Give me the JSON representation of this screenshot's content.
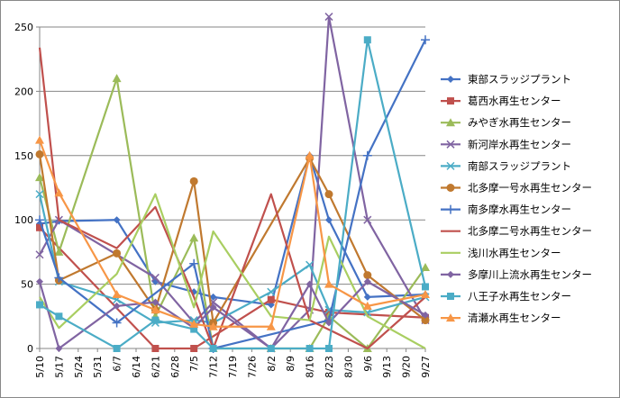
{
  "chart_data": {
    "type": "line",
    "x": [
      "5/10",
      "5/17",
      "5/24",
      "5/31",
      "6/7",
      "6/14",
      "6/21",
      "6/28",
      "7/5",
      "7/12",
      "7/19",
      "7/26",
      "8/2",
      "8/9",
      "8/16",
      "8/23",
      "8/30",
      "9/6",
      "9/13",
      "9/20",
      "9/27"
    ],
    "ylim": [
      0,
      250
    ],
    "yticks": [
      0,
      50,
      100,
      150,
      200,
      250
    ],
    "legend_position": "right",
    "grid": "horizontal",
    "series": [
      {
        "name": "東部スラッジプラント",
        "color": "#4472C4",
        "marker": "diamond",
        "values": [
          97,
          99,
          null,
          null,
          100,
          null,
          52,
          null,
          44,
          40,
          null,
          null,
          34,
          null,
          150,
          100,
          null,
          40,
          null,
          null,
          42
        ]
      },
      {
        "name": "葛西水再生センター",
        "color": "#C0504D",
        "marker": "square",
        "values": [
          94,
          null,
          null,
          null,
          null,
          null,
          0,
          null,
          0,
          null,
          null,
          null,
          38,
          null,
          null,
          28,
          null,
          null,
          null,
          null,
          24
        ]
      },
      {
        "name": "みやぎ水再生センター",
        "color": "#9BBB59",
        "marker": "triangle",
        "values": [
          133,
          75,
          null,
          null,
          210,
          null,
          25,
          null,
          86,
          0,
          null,
          null,
          0,
          null,
          0,
          25,
          null,
          0,
          null,
          null,
          63
        ]
      },
      {
        "name": "新河岸水再生センター",
        "color": "#8064A2",
        "marker": "x",
        "values": [
          73,
          100,
          null,
          null,
          null,
          null,
          55,
          null,
          20,
          36,
          null,
          null,
          0,
          null,
          30,
          258,
          null,
          100,
          null,
          null,
          22
        ]
      },
      {
        "name": "南部スラッジプラント",
        "color": "#4BACC6",
        "marker": "x",
        "values": [
          120,
          52,
          null,
          null,
          38,
          null,
          20,
          null,
          22,
          20,
          null,
          null,
          44,
          null,
          65,
          30,
          null,
          28,
          null,
          null,
          40
        ]
      },
      {
        "name": "北多摩一号水再生センター",
        "color": "#C0792F",
        "marker": "circle",
        "values": [
          151,
          53,
          null,
          null,
          74,
          null,
          30,
          null,
          130,
          20,
          null,
          null,
          null,
          null,
          148,
          120,
          null,
          57,
          null,
          null,
          22
        ]
      },
      {
        "name": "南多摩水再生センター",
        "color": "#4472C4",
        "marker": "plus",
        "values": [
          100,
          55,
          null,
          null,
          20,
          null,
          null,
          null,
          66,
          0,
          null,
          null,
          null,
          null,
          null,
          22,
          null,
          150,
          null,
          null,
          240
        ]
      },
      {
        "name": "北多摩二号水再生センター",
        "color": "#C0504D",
        "marker": "none",
        "values": [
          234,
          100,
          null,
          null,
          78,
          null,
          110,
          null,
          40,
          0,
          null,
          null,
          120,
          null,
          22,
          null,
          null,
          0,
          null,
          null,
          40
        ]
      },
      {
        "name": "浅川水再生センター",
        "color": "#A9CE61",
        "marker": "none",
        "values": [
          40,
          16,
          null,
          null,
          58,
          null,
          120,
          null,
          32,
          91,
          null,
          null,
          25,
          null,
          22,
          87,
          null,
          25,
          null,
          null,
          0
        ]
      },
      {
        "name": "多摩川上流水再生センター",
        "color": "#8064A2",
        "marker": "diamond",
        "values": [
          52,
          0,
          null,
          null,
          33,
          null,
          36,
          null,
          16,
          32,
          null,
          null,
          0,
          null,
          50,
          20,
          null,
          52,
          null,
          null,
          26
        ]
      },
      {
        "name": "八王子水再生センター",
        "color": "#4BACC6",
        "marker": "square",
        "values": [
          34,
          25,
          null,
          null,
          0,
          null,
          22,
          null,
          15,
          0,
          null,
          null,
          0,
          null,
          0,
          0,
          null,
          240,
          null,
          null,
          48
        ]
      },
      {
        "name": "清瀬水再生センター",
        "color": "#F79646",
        "marker": "triangle",
        "values": [
          162,
          121,
          null,
          null,
          42,
          null,
          30,
          null,
          19,
          17,
          null,
          null,
          17,
          null,
          150,
          50,
          null,
          33,
          null,
          null,
          42
        ]
      }
    ]
  }
}
